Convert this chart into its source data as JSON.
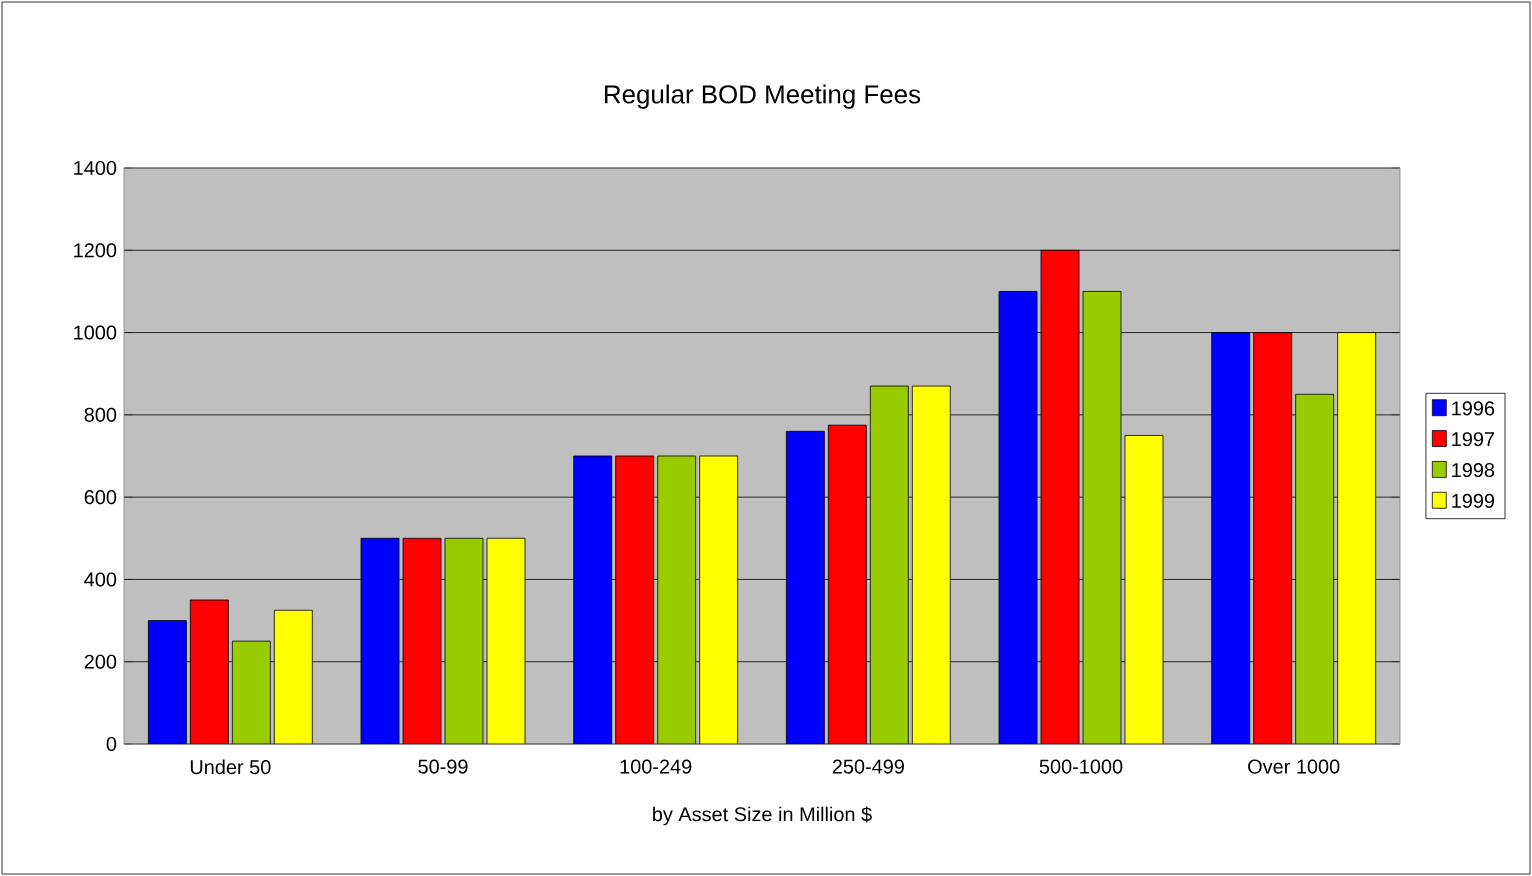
{
  "chart_data": {
    "type": "bar",
    "title": "Regular BOD Meeting Fees",
    "xlabel": "by Asset Size in Million $",
    "categories": [
      "Under 50",
      "50-99",
      "100-249",
      "250-499",
      "500-1000",
      "Over 1000"
    ],
    "series": [
      {
        "name": "1996",
        "color": "#0000ff",
        "values": [
          300,
          500,
          700,
          760,
          1100,
          1000
        ]
      },
      {
        "name": "1997",
        "color": "#ff0000",
        "values": [
          350,
          500,
          700,
          775,
          1200,
          1000
        ]
      },
      {
        "name": "1998",
        "color": "#99cc00",
        "values": [
          250,
          500,
          700,
          870,
          1100,
          850
        ]
      },
      {
        "name": "1999",
        "color": "#ffff00",
        "values": [
          325,
          500,
          700,
          870,
          750,
          1000
        ]
      }
    ],
    "ylim": [
      0,
      1400
    ],
    "yticks": [
      0,
      200,
      400,
      600,
      800,
      1000,
      1200,
      1400
    ],
    "grid": "y",
    "legend": "right"
  }
}
